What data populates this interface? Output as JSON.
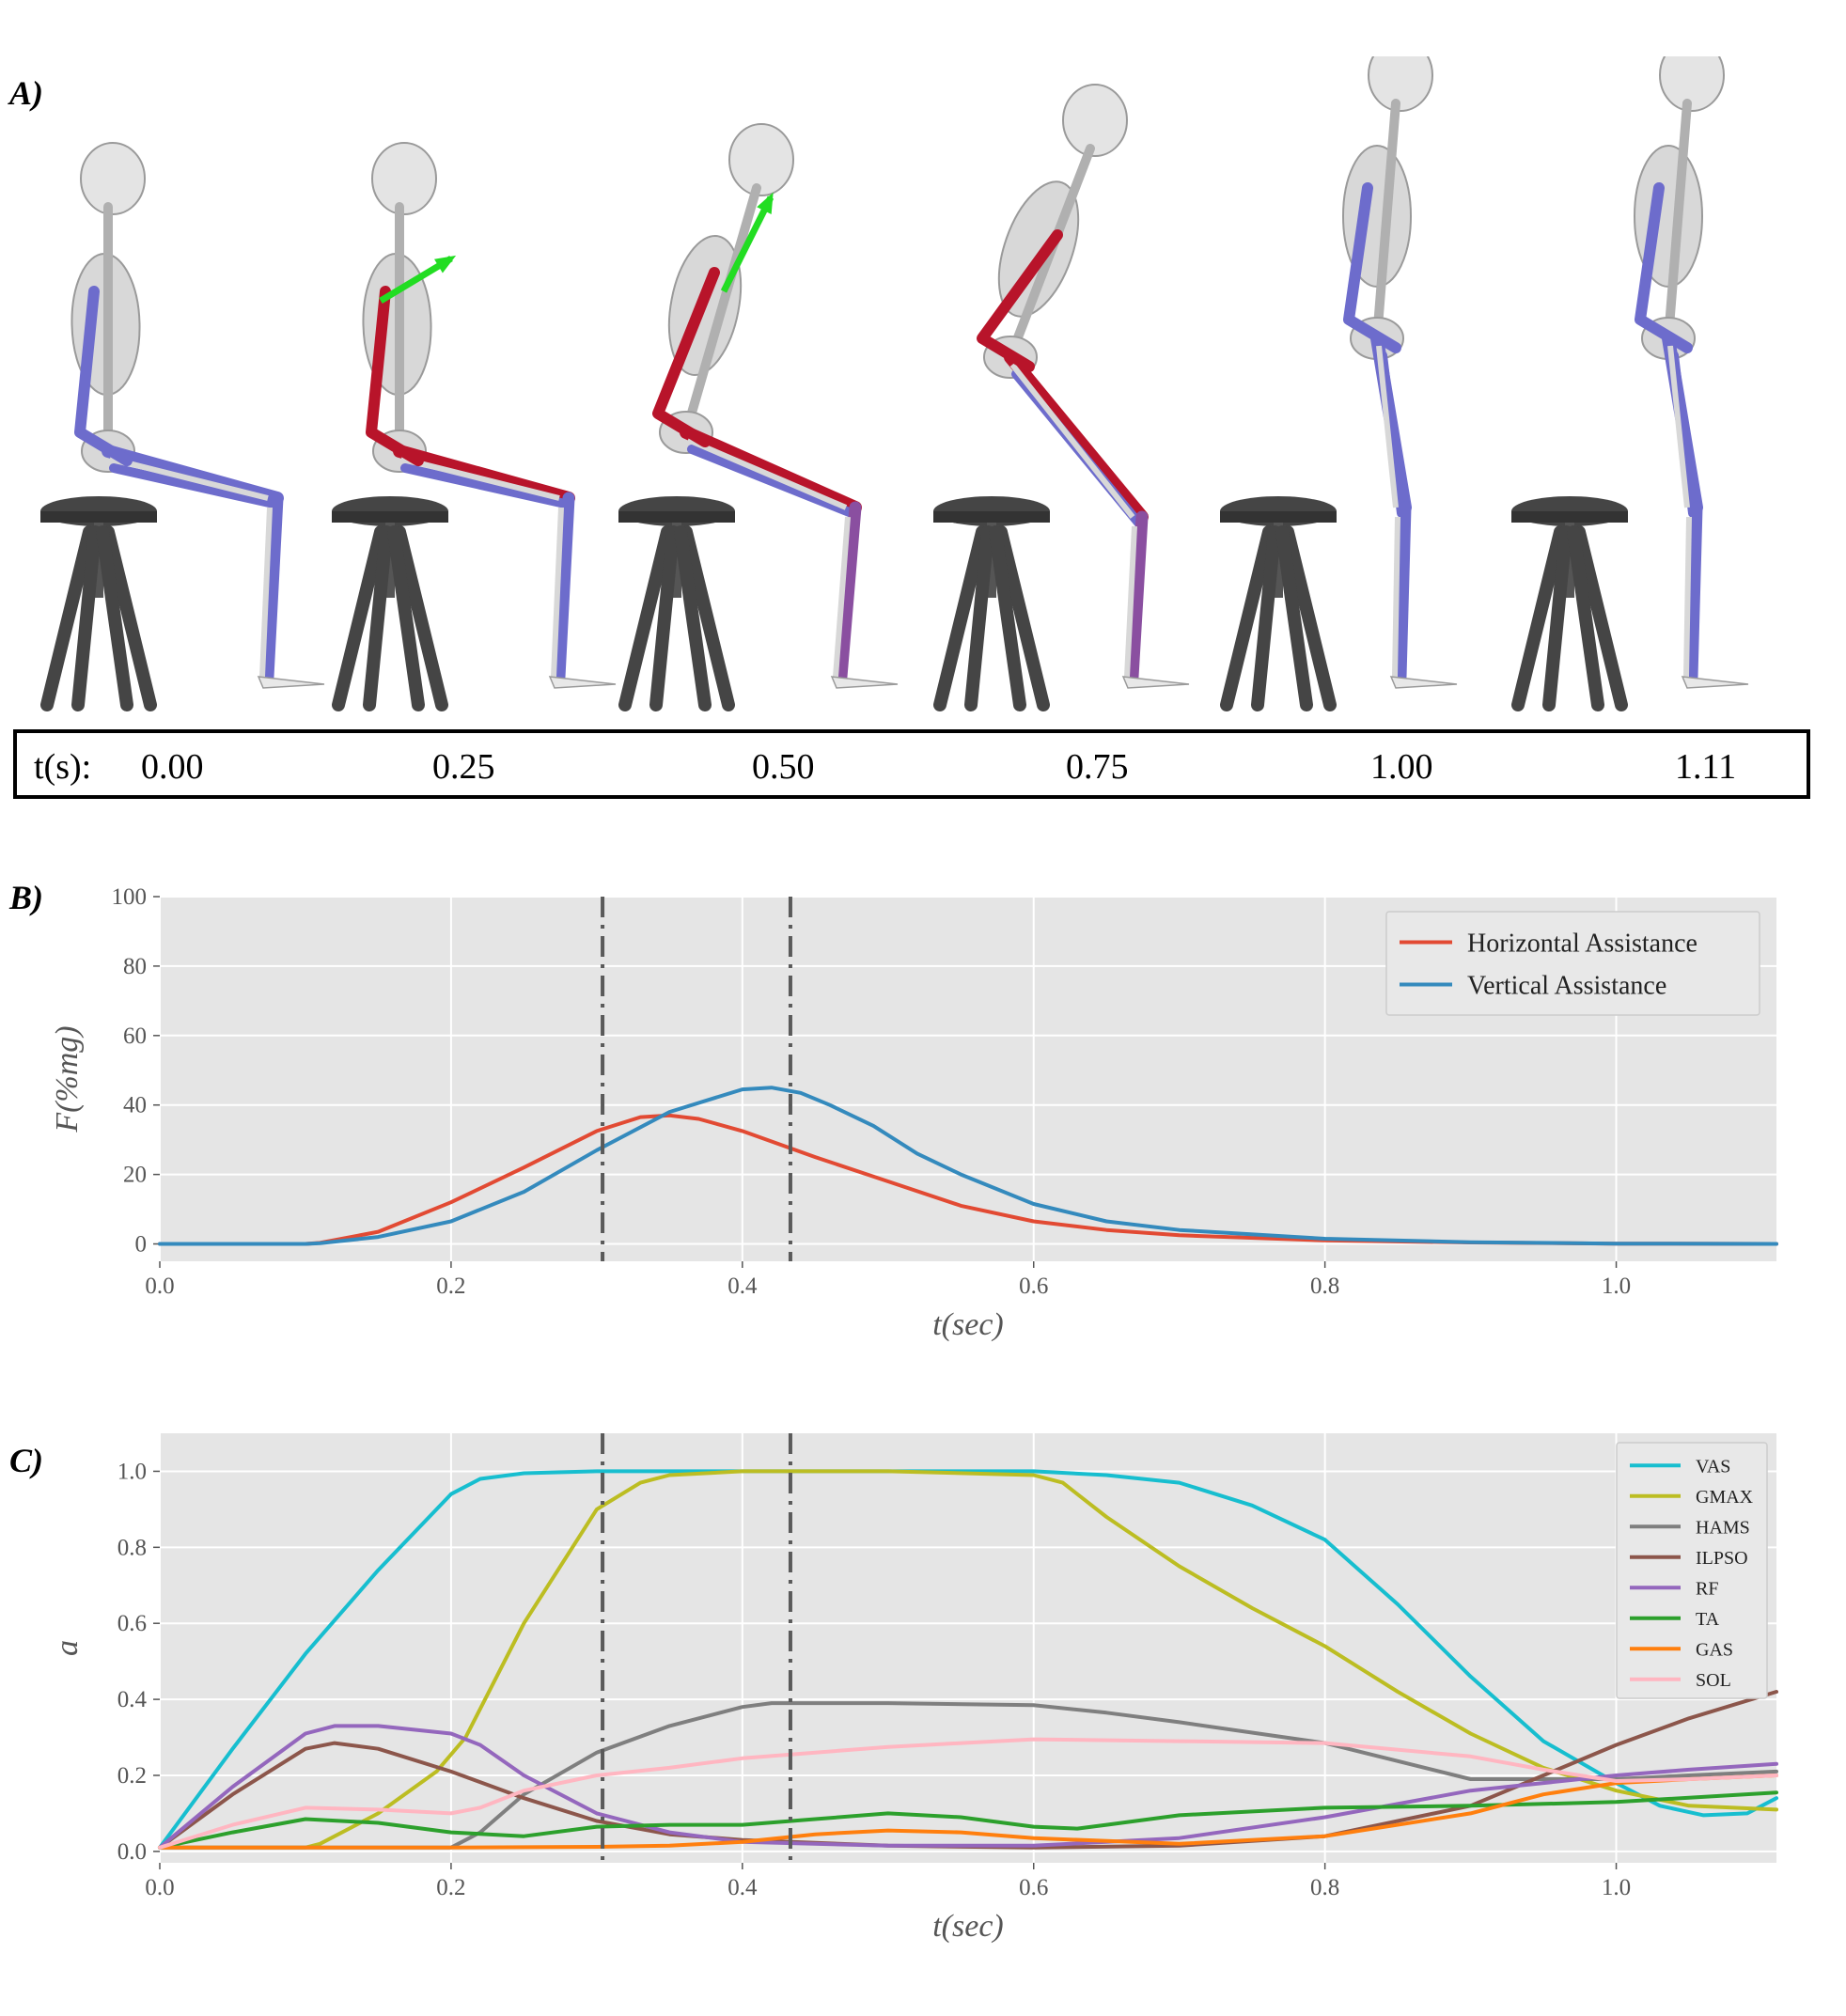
{
  "panels": {
    "a": "A)",
    "b": "B)",
    "c": "C)"
  },
  "time_row": {
    "label": "t(s):",
    "values": [
      "0.00",
      "0.25",
      "0.50",
      "0.75",
      "1.00",
      "1.11"
    ]
  },
  "poses": [
    {
      "pose": "seated",
      "arrow": "none"
    },
    {
      "pose": "seated",
      "arrow": "diagonal-small"
    },
    {
      "pose": "lean",
      "arrow": "diagonal-large"
    },
    {
      "pose": "rising",
      "arrow": "none"
    },
    {
      "pose": "standing",
      "arrow": "none"
    },
    {
      "pose": "standing",
      "arrow": "none"
    }
  ],
  "colors": {
    "assist_arrow": "#22dd22",
    "muscle_idle": "#6d6ccc",
    "muscle_active": "#b8142a",
    "stool": "#454545"
  },
  "chart_data": [
    {
      "type": "line",
      "xlabel": "t(sec)",
      "ylabel": "F(%mg)",
      "xlim": [
        0,
        1.11
      ],
      "ylim": [
        -5,
        100
      ],
      "xticks": [
        "0.0",
        "0.2",
        "0.4",
        "0.6",
        "0.8",
        "1.0"
      ],
      "yticks": [
        "0",
        "20",
        "40",
        "60",
        "80",
        "100"
      ],
      "vlines": [
        0.304,
        0.433
      ],
      "legend": "top-right",
      "grid": true,
      "series": [
        {
          "name": "Horizontal Assistance",
          "color": "#e24a33",
          "x": [
            0,
            0.1,
            0.11,
            0.15,
            0.2,
            0.25,
            0.3,
            0.33,
            0.35,
            0.37,
            0.4,
            0.45,
            0.5,
            0.55,
            0.6,
            0.65,
            0.7,
            0.8,
            0.9,
            1.0,
            1.11
          ],
          "y": [
            0,
            0,
            0.3,
            3.5,
            12,
            22,
            32.5,
            36.5,
            37,
            36,
            32.5,
            25,
            18,
            11,
            6.5,
            4,
            2.5,
            1,
            0.4,
            0.1,
            0
          ]
        },
        {
          "name": "Vertical Assistance",
          "color": "#348abd",
          "x": [
            0,
            0.1,
            0.11,
            0.15,
            0.2,
            0.25,
            0.3,
            0.35,
            0.4,
            0.42,
            0.44,
            0.46,
            0.49,
            0.52,
            0.55,
            0.6,
            0.65,
            0.7,
            0.8,
            0.9,
            1.0,
            1.11
          ],
          "y": [
            0,
            0,
            0.2,
            2,
            6.5,
            15,
            27,
            38,
            44.5,
            45,
            43.5,
            40,
            34,
            26,
            20,
            11.5,
            6.5,
            4,
            1.5,
            0.5,
            0.1,
            0
          ]
        }
      ]
    },
    {
      "type": "line",
      "xlabel": "t(sec)",
      "ylabel": "a",
      "xlim": [
        0,
        1.11
      ],
      "ylim": [
        -0.03,
        1.1
      ],
      "xticks": [
        "0.0",
        "0.2",
        "0.4",
        "0.6",
        "0.8",
        "1.0"
      ],
      "yticks": [
        "0.0",
        "0.2",
        "0.4",
        "0.6",
        "0.8",
        "1.0"
      ],
      "vlines": [
        0.304,
        0.433
      ],
      "legend": "top-right",
      "grid": true,
      "series": [
        {
          "name": "VAS",
          "color": "#17becf",
          "x": [
            0,
            0.05,
            0.1,
            0.15,
            0.2,
            0.22,
            0.25,
            0.3,
            0.4,
            0.5,
            0.6,
            0.65,
            0.7,
            0.75,
            0.8,
            0.85,
            0.9,
            0.95,
            1.0,
            1.03,
            1.06,
            1.09,
            1.11
          ],
          "y": [
            0.01,
            0.27,
            0.52,
            0.74,
            0.94,
            0.98,
            0.995,
            1.0,
            1.0,
            1.0,
            1.0,
            0.99,
            0.97,
            0.91,
            0.82,
            0.65,
            0.46,
            0.29,
            0.18,
            0.12,
            0.095,
            0.1,
            0.14
          ]
        },
        {
          "name": "GMAX",
          "color": "#bcbd22",
          "x": [
            0,
            0.05,
            0.1,
            0.11,
            0.15,
            0.19,
            0.21,
            0.25,
            0.3,
            0.33,
            0.35,
            0.4,
            0.5,
            0.6,
            0.62,
            0.65,
            0.7,
            0.75,
            0.8,
            0.85,
            0.9,
            0.95,
            1.0,
            1.05,
            1.11
          ],
          "y": [
            0.01,
            0.01,
            0.01,
            0.02,
            0.1,
            0.21,
            0.3,
            0.6,
            0.9,
            0.97,
            0.99,
            1.0,
            1.0,
            0.99,
            0.97,
            0.88,
            0.75,
            0.64,
            0.54,
            0.42,
            0.31,
            0.22,
            0.16,
            0.12,
            0.11
          ]
        },
        {
          "name": "HAMS",
          "color": "#7f7f7f",
          "x": [
            0,
            0.2,
            0.22,
            0.25,
            0.3,
            0.35,
            0.4,
            0.42,
            0.5,
            0.6,
            0.65,
            0.7,
            0.8,
            0.9,
            1.0,
            1.05,
            1.11
          ],
          "y": [
            0.01,
            0.01,
            0.05,
            0.15,
            0.26,
            0.33,
            0.38,
            0.39,
            0.39,
            0.385,
            0.365,
            0.34,
            0.285,
            0.19,
            0.19,
            0.2,
            0.21
          ]
        },
        {
          "name": "ILPSO",
          "color": "#8c564b",
          "x": [
            0,
            0.05,
            0.1,
            0.12,
            0.15,
            0.2,
            0.25,
            0.3,
            0.35,
            0.4,
            0.5,
            0.6,
            0.7,
            0.8,
            0.9,
            0.95,
            1.0,
            1.05,
            1.11
          ],
          "y": [
            0.01,
            0.15,
            0.27,
            0.285,
            0.27,
            0.21,
            0.14,
            0.08,
            0.045,
            0.03,
            0.015,
            0.01,
            0.015,
            0.04,
            0.12,
            0.2,
            0.28,
            0.35,
            0.42
          ]
        },
        {
          "name": "RF",
          "color": "#9467bd",
          "x": [
            0,
            0.05,
            0.1,
            0.12,
            0.15,
            0.2,
            0.22,
            0.25,
            0.3,
            0.35,
            0.4,
            0.5,
            0.6,
            0.7,
            0.8,
            0.9,
            1.0,
            1.05,
            1.11
          ],
          "y": [
            0.01,
            0.17,
            0.31,
            0.33,
            0.33,
            0.31,
            0.28,
            0.2,
            0.1,
            0.05,
            0.025,
            0.015,
            0.015,
            0.035,
            0.09,
            0.16,
            0.2,
            0.215,
            0.23
          ]
        },
        {
          "name": "TA",
          "color": "#2ca02c",
          "x": [
            0,
            0.05,
            0.1,
            0.15,
            0.2,
            0.25,
            0.3,
            0.35,
            0.4,
            0.45,
            0.5,
            0.55,
            0.6,
            0.63,
            0.65,
            0.7,
            0.75,
            0.8,
            0.9,
            1.0,
            1.11
          ],
          "y": [
            0.01,
            0.05,
            0.085,
            0.075,
            0.05,
            0.04,
            0.065,
            0.07,
            0.07,
            0.085,
            0.1,
            0.09,
            0.065,
            0.06,
            0.07,
            0.095,
            0.105,
            0.115,
            0.12,
            0.13,
            0.155
          ]
        },
        {
          "name": "GAS",
          "color": "#ff7f0e",
          "x": [
            0,
            0.05,
            0.1,
            0.2,
            0.3,
            0.35,
            0.4,
            0.45,
            0.5,
            0.55,
            0.6,
            0.7,
            0.8,
            0.9,
            0.95,
            1.0,
            1.05,
            1.11
          ],
          "y": [
            0.01,
            0.01,
            0.01,
            0.01,
            0.012,
            0.015,
            0.025,
            0.045,
            0.055,
            0.05,
            0.035,
            0.02,
            0.04,
            0.1,
            0.15,
            0.18,
            0.19,
            0.2
          ]
        },
        {
          "name": "SOL",
          "color": "#ffb6c1",
          "x": [
            0,
            0.05,
            0.1,
            0.15,
            0.2,
            0.22,
            0.25,
            0.3,
            0.35,
            0.4,
            0.5,
            0.6,
            0.7,
            0.8,
            0.9,
            0.95,
            1.0,
            1.05,
            1.11
          ],
          "y": [
            0.01,
            0.07,
            0.115,
            0.11,
            0.1,
            0.115,
            0.16,
            0.2,
            0.22,
            0.245,
            0.275,
            0.295,
            0.29,
            0.285,
            0.25,
            0.215,
            0.185,
            0.19,
            0.2
          ]
        }
      ]
    }
  ]
}
